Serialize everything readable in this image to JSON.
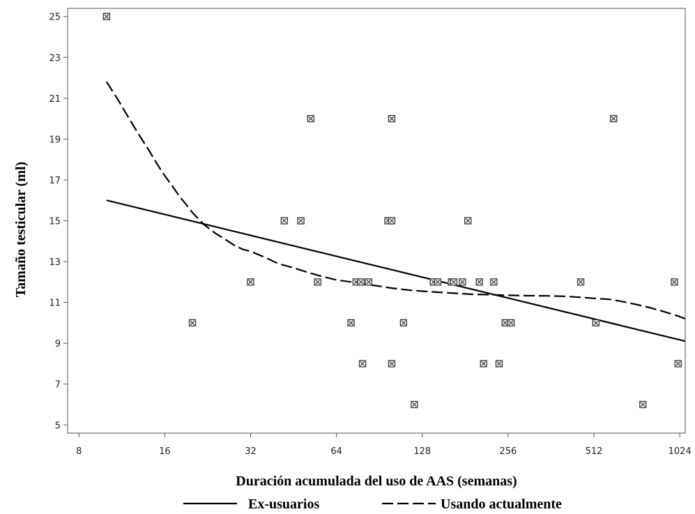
{
  "chart_data": {
    "type": "scatter",
    "title": "",
    "xlabel": "Duración acumulada del uso de AAS (semanas)",
    "ylabel": "Tamaño testicular (ml)",
    "x_scale": "log2",
    "xlim": [
      7.3,
      1070
    ],
    "ylim": [
      4.6,
      25.4
    ],
    "xticks": [
      8,
      16,
      32,
      64,
      128,
      256,
      512,
      1024
    ],
    "xtick_labels": [
      "8",
      "16",
      "32",
      "64",
      "128",
      "256",
      "512",
      "1024"
    ],
    "yticks": [
      5,
      7,
      9,
      11,
      13,
      15,
      17,
      19,
      21,
      23,
      25
    ],
    "ytick_labels": [
      "5",
      "7",
      "9",
      "11",
      "13",
      "15",
      "17",
      "19",
      "21",
      "23",
      "25"
    ],
    "grid": false,
    "legend_position": "bottom",
    "points": [
      {
        "x": 10,
        "y": 25
      },
      {
        "x": 20,
        "y": 10
      },
      {
        "x": 32,
        "y": 12
      },
      {
        "x": 42,
        "y": 15
      },
      {
        "x": 48,
        "y": 15
      },
      {
        "x": 52,
        "y": 20
      },
      {
        "x": 55,
        "y": 12
      },
      {
        "x": 72,
        "y": 10
      },
      {
        "x": 75,
        "y": 12
      },
      {
        "x": 78,
        "y": 12
      },
      {
        "x": 79,
        "y": 8
      },
      {
        "x": 83,
        "y": 12
      },
      {
        "x": 97,
        "y": 15
      },
      {
        "x": 100,
        "y": 15
      },
      {
        "x": 100,
        "y": 20
      },
      {
        "x": 100,
        "y": 8
      },
      {
        "x": 110,
        "y": 10
      },
      {
        "x": 120,
        "y": 6
      },
      {
        "x": 140,
        "y": 12
      },
      {
        "x": 145,
        "y": 12
      },
      {
        "x": 162,
        "y": 12
      },
      {
        "x": 165,
        "y": 12
      },
      {
        "x": 177,
        "y": 12
      },
      {
        "x": 185,
        "y": 15
      },
      {
        "x": 203,
        "y": 12
      },
      {
        "x": 210,
        "y": 8
      },
      {
        "x": 228,
        "y": 12
      },
      {
        "x": 238,
        "y": 8
      },
      {
        "x": 250,
        "y": 10
      },
      {
        "x": 262,
        "y": 10
      },
      {
        "x": 460,
        "y": 12
      },
      {
        "x": 520,
        "y": 10
      },
      {
        "x": 600,
        "y": 20
      },
      {
        "x": 760,
        "y": 6
      },
      {
        "x": 980,
        "y": 12
      },
      {
        "x": 1010,
        "y": 8
      }
    ],
    "series": [
      {
        "name": "Ex-usuarios",
        "style": "solid",
        "x": [
          10,
          1070
        ],
        "y": [
          16.0,
          9.1
        ]
      },
      {
        "name": "Usando actualmente",
        "style": "dashed",
        "x": [
          10,
          11,
          12,
          13,
          14,
          15,
          16,
          17,
          18,
          19,
          20,
          22,
          24,
          26,
          28,
          30,
          32,
          36,
          40,
          45,
          50,
          56,
          64,
          72,
          80,
          90,
          100,
          115,
          128,
          145,
          165,
          190,
          220,
          256,
          300,
          350,
          400,
          460,
          512,
          580,
          640,
          720,
          800,
          900,
          1000,
          1070
        ],
        "y": [
          21.8,
          20.9,
          20.0,
          19.2,
          18.5,
          17.8,
          17.2,
          16.7,
          16.2,
          15.8,
          15.4,
          14.8,
          14.4,
          14.1,
          13.8,
          13.6,
          13.5,
          13.2,
          12.9,
          12.7,
          12.5,
          12.3,
          12.1,
          12.0,
          11.9,
          11.8,
          11.7,
          11.6,
          11.55,
          11.5,
          11.45,
          11.4,
          11.38,
          11.35,
          11.33,
          11.32,
          11.3,
          11.25,
          11.2,
          11.15,
          11.05,
          10.9,
          10.75,
          10.55,
          10.35,
          10.2
        ]
      }
    ]
  }
}
